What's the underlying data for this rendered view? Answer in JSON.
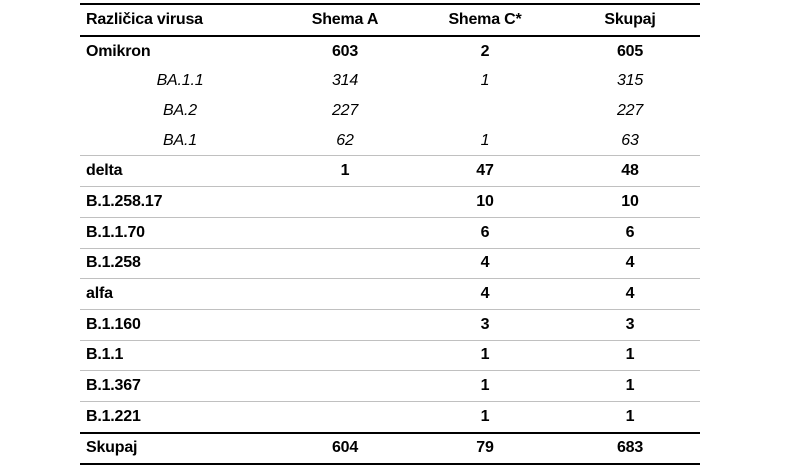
{
  "page": {
    "background_color": "#ffffff",
    "text_color": "#000000",
    "thick_rule_color": "#000000",
    "thin_rule_color": "#c0c0c0"
  },
  "chart_data": {
    "type": "table",
    "title": "",
    "columns": [
      "Različica virusa",
      "Shema A",
      "Shema C*",
      "Skupaj"
    ],
    "rows": [
      {
        "variant": "group",
        "cells": [
          "Omikron",
          "603",
          "2",
          "605"
        ]
      },
      {
        "variant": "sub",
        "cells": [
          "BA.1.1",
          "314",
          "1",
          "315"
        ]
      },
      {
        "variant": "sub",
        "cells": [
          "BA.2",
          "227",
          "",
          "227"
        ]
      },
      {
        "variant": "sub",
        "cells": [
          "BA.1",
          "62",
          "1",
          "63"
        ]
      },
      {
        "variant": "main",
        "cells": [
          "delta",
          "1",
          "47",
          "48"
        ]
      },
      {
        "variant": "main",
        "cells": [
          "B.1.258.17",
          "",
          "10",
          "10"
        ]
      },
      {
        "variant": "main",
        "cells": [
          "B.1.1.70",
          "",
          "6",
          "6"
        ]
      },
      {
        "variant": "main",
        "cells": [
          "B.1.258",
          "",
          "4",
          "4"
        ]
      },
      {
        "variant": "main",
        "cells": [
          "alfa",
          "",
          "4",
          "4"
        ]
      },
      {
        "variant": "main",
        "cells": [
          "B.1.160",
          "",
          "3",
          "3"
        ]
      },
      {
        "variant": "main",
        "cells": [
          "B.1.1",
          "",
          "1",
          "1"
        ]
      },
      {
        "variant": "main",
        "cells": [
          "B.1.367",
          "",
          "1",
          "1"
        ]
      },
      {
        "variant": "main",
        "cells": [
          "B.1.221",
          "",
          "1",
          "1"
        ]
      },
      {
        "variant": "total",
        "cells": [
          "Skupaj",
          "604",
          "79",
          "683"
        ]
      }
    ],
    "totals": {
      "shema_a": 604,
      "shema_c": 79,
      "skupaj": 683
    }
  }
}
